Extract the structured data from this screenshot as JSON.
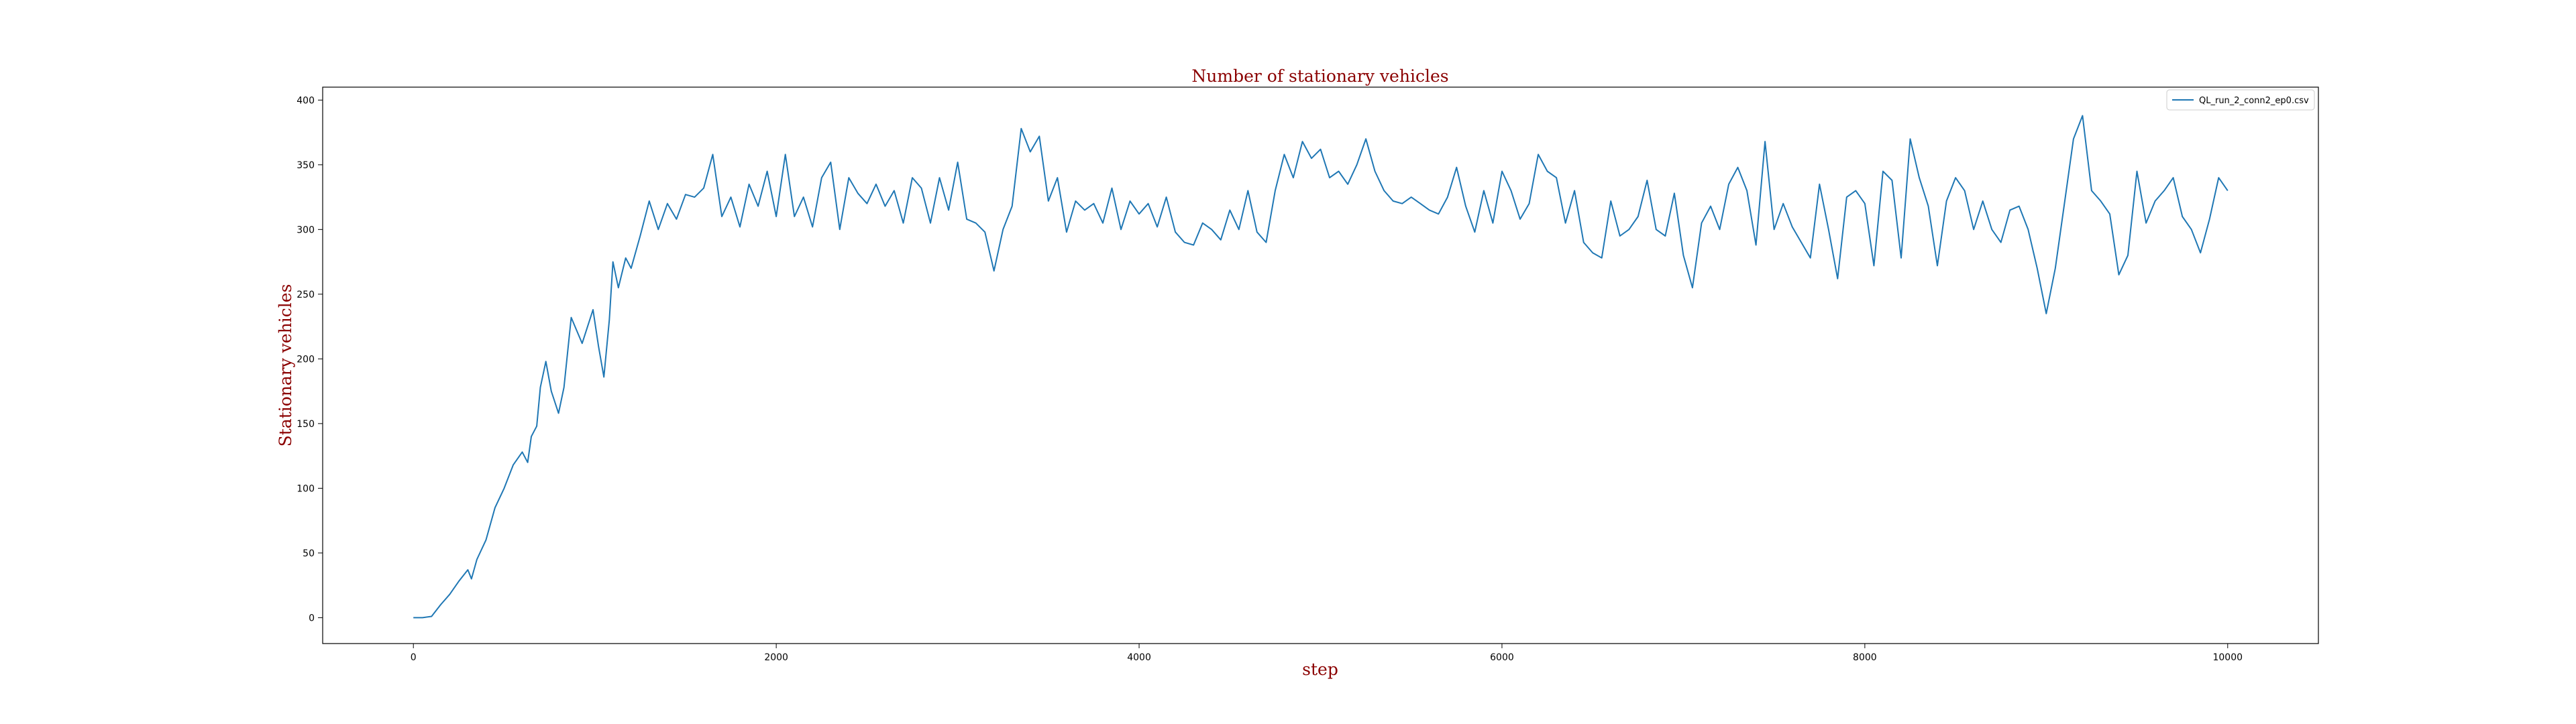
{
  "chart_data": {
    "type": "line",
    "title": "Number of stationary vehicles",
    "xlabel": "step",
    "ylabel": "Stationary vehicles",
    "xlim": [
      -500,
      10500
    ],
    "ylim": [
      -20,
      410
    ],
    "xticks": [
      0,
      2000,
      4000,
      6000,
      8000,
      10000
    ],
    "yticks": [
      0,
      50,
      100,
      150,
      200,
      250,
      300,
      350,
      400
    ],
    "grid": false,
    "legend_position": "top-right",
    "series": [
      {
        "name": "QL_run_2_conn2_ep0.csv",
        "color": "#1f77b4",
        "points": [
          [
            0,
            0
          ],
          [
            50,
            0
          ],
          [
            100,
            1
          ],
          [
            150,
            10
          ],
          [
            200,
            18
          ],
          [
            250,
            28
          ],
          [
            300,
            37
          ],
          [
            320,
            30
          ],
          [
            350,
            45
          ],
          [
            400,
            60
          ],
          [
            450,
            85
          ],
          [
            500,
            100
          ],
          [
            550,
            118
          ],
          [
            600,
            128
          ],
          [
            630,
            120
          ],
          [
            650,
            140
          ],
          [
            680,
            148
          ],
          [
            700,
            178
          ],
          [
            730,
            198
          ],
          [
            760,
            175
          ],
          [
            800,
            158
          ],
          [
            830,
            178
          ],
          [
            870,
            232
          ],
          [
            900,
            222
          ],
          [
            930,
            212
          ],
          [
            960,
            225
          ],
          [
            990,
            238
          ],
          [
            1020,
            210
          ],
          [
            1050,
            186
          ],
          [
            1080,
            230
          ],
          [
            1100,
            275
          ],
          [
            1130,
            255
          ],
          [
            1170,
            278
          ],
          [
            1200,
            270
          ],
          [
            1250,
            295
          ],
          [
            1300,
            322
          ],
          [
            1350,
            300
          ],
          [
            1400,
            320
          ],
          [
            1450,
            308
          ],
          [
            1500,
            327
          ],
          [
            1550,
            325
          ],
          [
            1600,
            332
          ],
          [
            1650,
            358
          ],
          [
            1700,
            310
          ],
          [
            1750,
            325
          ],
          [
            1800,
            302
          ],
          [
            1850,
            335
          ],
          [
            1900,
            318
          ],
          [
            1950,
            345
          ],
          [
            2000,
            310
          ],
          [
            2050,
            358
          ],
          [
            2100,
            310
          ],
          [
            2150,
            325
          ],
          [
            2200,
            302
          ],
          [
            2250,
            340
          ],
          [
            2300,
            352
          ],
          [
            2350,
            300
          ],
          [
            2400,
            340
          ],
          [
            2450,
            328
          ],
          [
            2500,
            320
          ],
          [
            2550,
            335
          ],
          [
            2600,
            318
          ],
          [
            2650,
            330
          ],
          [
            2700,
            305
          ],
          [
            2750,
            340
          ],
          [
            2800,
            332
          ],
          [
            2850,
            305
          ],
          [
            2900,
            340
          ],
          [
            2950,
            315
          ],
          [
            3000,
            352
          ],
          [
            3050,
            308
          ],
          [
            3100,
            305
          ],
          [
            3150,
            298
          ],
          [
            3200,
            268
          ],
          [
            3250,
            300
          ],
          [
            3300,
            318
          ],
          [
            3350,
            378
          ],
          [
            3400,
            360
          ],
          [
            3450,
            372
          ],
          [
            3500,
            322
          ],
          [
            3550,
            340
          ],
          [
            3600,
            298
          ],
          [
            3650,
            322
          ],
          [
            3700,
            315
          ],
          [
            3750,
            320
          ],
          [
            3800,
            305
          ],
          [
            3850,
            332
          ],
          [
            3900,
            300
          ],
          [
            3950,
            322
          ],
          [
            4000,
            312
          ],
          [
            4050,
            320
          ],
          [
            4100,
            302
          ],
          [
            4150,
            325
          ],
          [
            4200,
            298
          ],
          [
            4250,
            290
          ],
          [
            4300,
            288
          ],
          [
            4350,
            305
          ],
          [
            4400,
            300
          ],
          [
            4450,
            292
          ],
          [
            4500,
            315
          ],
          [
            4550,
            300
          ],
          [
            4600,
            330
          ],
          [
            4650,
            298
          ],
          [
            4700,
            290
          ],
          [
            4750,
            330
          ],
          [
            4800,
            358
          ],
          [
            4850,
            340
          ],
          [
            4900,
            368
          ],
          [
            4950,
            355
          ],
          [
            5000,
            362
          ],
          [
            5050,
            340
          ],
          [
            5100,
            345
          ],
          [
            5150,
            335
          ],
          [
            5200,
            350
          ],
          [
            5250,
            370
          ],
          [
            5300,
            345
          ],
          [
            5350,
            330
          ],
          [
            5400,
            322
          ],
          [
            5450,
            320
          ],
          [
            5500,
            325
          ],
          [
            5550,
            320
          ],
          [
            5600,
            315
          ],
          [
            5650,
            312
          ],
          [
            5700,
            325
          ],
          [
            5750,
            348
          ],
          [
            5800,
            318
          ],
          [
            5850,
            298
          ],
          [
            5900,
            330
          ],
          [
            5950,
            305
          ],
          [
            6000,
            345
          ],
          [
            6050,
            330
          ],
          [
            6100,
            308
          ],
          [
            6150,
            320
          ],
          [
            6200,
            358
          ],
          [
            6250,
            345
          ],
          [
            6300,
            340
          ],
          [
            6350,
            305
          ],
          [
            6400,
            330
          ],
          [
            6450,
            290
          ],
          [
            6500,
            282
          ],
          [
            6550,
            278
          ],
          [
            6600,
            322
          ],
          [
            6650,
            295
          ],
          [
            6700,
            300
          ],
          [
            6750,
            310
          ],
          [
            6800,
            338
          ],
          [
            6850,
            300
          ],
          [
            6900,
            295
          ],
          [
            6950,
            328
          ],
          [
            7000,
            280
          ],
          [
            7050,
            255
          ],
          [
            7100,
            305
          ],
          [
            7150,
            318
          ],
          [
            7200,
            300
          ],
          [
            7250,
            335
          ],
          [
            7300,
            348
          ],
          [
            7350,
            330
          ],
          [
            7400,
            288
          ],
          [
            7450,
            368
          ],
          [
            7500,
            300
          ],
          [
            7550,
            320
          ],
          [
            7600,
            302
          ],
          [
            7650,
            290
          ],
          [
            7700,
            278
          ],
          [
            7750,
            335
          ],
          [
            7800,
            300
          ],
          [
            7850,
            262
          ],
          [
            7900,
            325
          ],
          [
            7950,
            330
          ],
          [
            8000,
            320
          ],
          [
            8050,
            272
          ],
          [
            8100,
            345
          ],
          [
            8150,
            338
          ],
          [
            8200,
            278
          ],
          [
            8250,
            370
          ],
          [
            8300,
            340
          ],
          [
            8350,
            318
          ],
          [
            8400,
            272
          ],
          [
            8450,
            322
          ],
          [
            8500,
            340
          ],
          [
            8550,
            330
          ],
          [
            8600,
            300
          ],
          [
            8650,
            322
          ],
          [
            8700,
            300
          ],
          [
            8750,
            290
          ],
          [
            8800,
            315
          ],
          [
            8850,
            318
          ],
          [
            8900,
            300
          ],
          [
            8950,
            270
          ],
          [
            9000,
            235
          ],
          [
            9050,
            270
          ],
          [
            9100,
            320
          ],
          [
            9150,
            370
          ],
          [
            9200,
            388
          ],
          [
            9250,
            330
          ],
          [
            9300,
            322
          ],
          [
            9350,
            312
          ],
          [
            9400,
            265
          ],
          [
            9450,
            280
          ],
          [
            9500,
            345
          ],
          [
            9550,
            305
          ],
          [
            9600,
            322
          ],
          [
            9650,
            330
          ],
          [
            9700,
            340
          ],
          [
            9750,
            310
          ],
          [
            9800,
            300
          ],
          [
            9850,
            282
          ],
          [
            9900,
            308
          ],
          [
            9950,
            340
          ],
          [
            10000,
            330
          ]
        ]
      }
    ]
  }
}
